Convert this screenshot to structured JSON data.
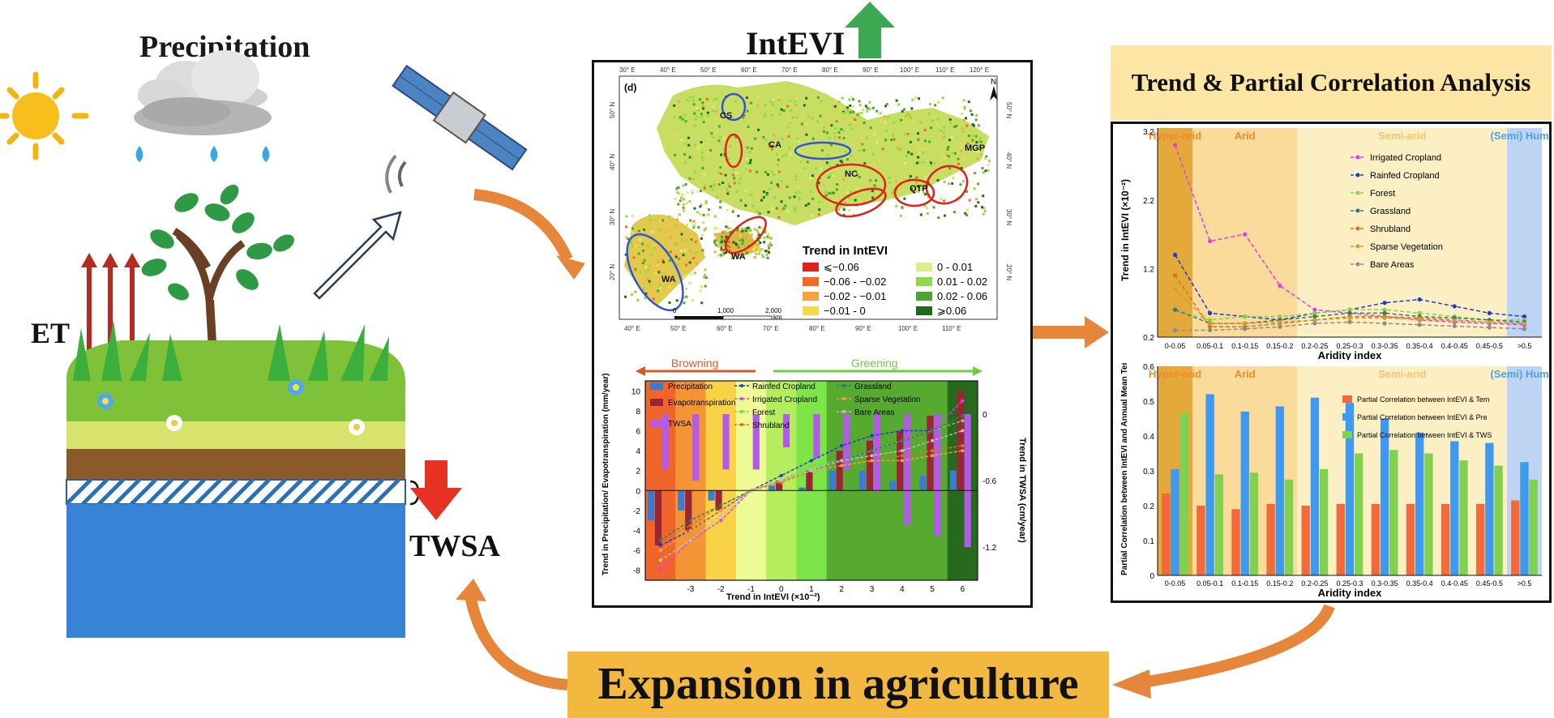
{
  "labels": {
    "precipitation": "Precipitation",
    "intevi": "IntEVI",
    "et": "ET",
    "twsa": "TWSA",
    "trend_title": "Trend & Partial Correlation Analysis",
    "expansion": "Expansion in agriculture"
  },
  "map": {
    "panel_label": "(d)",
    "north": "N",
    "lon_labels": [
      "30° E",
      "40° E",
      "50° E",
      "60° E",
      "70° E",
      "80° E",
      "90° E",
      "100° E",
      "110° E",
      "120° E"
    ],
    "lon_labels_bottom": [
      "40° E",
      "50° E",
      "60° E",
      "70° E",
      "80° E",
      "90° E",
      "100° E",
      "110° E"
    ],
    "lat_labels": [
      "50° N",
      "40° N",
      "30° N",
      "20° N"
    ],
    "regions": [
      "CS",
      "CA",
      "NC",
      "MGP",
      "QTP",
      "WA",
      "WA"
    ],
    "scale": [
      "0",
      "1,000",
      "2,000",
      "km"
    ],
    "legend_title": "Trend in IntEVI",
    "legend": [
      {
        "label": "⩽−0.06",
        "color": "#e0201c"
      },
      {
        "label": "0 - 0.01",
        "color": "#d9f08a"
      },
      {
        "label": "−0.06 - −0.02",
        "color": "#f26a26"
      },
      {
        "label": "0.01 - 0.02",
        "color": "#8fd94a"
      },
      {
        "label": "−0.02 - −0.01",
        "color": "#f6a241"
      },
      {
        "label": "0.02 - 0.06",
        "color": "#4ba52e"
      },
      {
        "label": "−0.01 - 0",
        "color": "#f7d84c"
      },
      {
        "label": "⩾0.06",
        "color": "#1f6b1e"
      }
    ]
  },
  "chart_mid": {
    "browning": "Browning",
    "greening": "Greening",
    "ylabel_left": "Trend in Precipitation/ Evapotranspiration (mm/year)",
    "ylabel_right": "Trend in TWSA (cm/year)",
    "xlabel": "Trend in IntEVI (×10⁻²)",
    "y_ticks": [
      "10",
      "8",
      "6",
      "4",
      "2",
      "0",
      "-2",
      "-4",
      "-6",
      "-8"
    ],
    "y2_ticks": [
      "0",
      "-0.6",
      "-1.2"
    ],
    "x_ticks": [
      "-3",
      "-2",
      "-1",
      "0",
      "1",
      "2",
      "3",
      "4",
      "5",
      "6"
    ],
    "legend": [
      "Precipitation",
      "Evapotranspiration",
      "TWSA",
      "Rainfed Cropland",
      "Irrigated Cropland",
      "Forest",
      "Shrubland",
      "Grassland",
      "Sparse Vegetation",
      "Bare Areas"
    ]
  },
  "chart_top": {
    "zones": [
      "Hyper-arid",
      "Arid",
      "Semi-arid",
      "(Semi) Humid"
    ],
    "ylabel": "Trend in IntEVI (×10⁻²)",
    "xlabel": "Aridity index",
    "y_ticks": [
      "3.2",
      "2.2",
      "1.2",
      "0.2"
    ],
    "x_ticks": [
      "0-0.05",
      "0.05-0.1",
      "0.1-0.15",
      "0.15-0.2",
      "0.2-0.25",
      "0.25-0.3",
      "0.3-0.35",
      "0.35-0.4",
      "0.4-0.45",
      "0.45-0.5",
      ">0.5"
    ],
    "legend": [
      "Irrigated Cropland",
      "Rainfed Cropland",
      "Forest",
      "Grassland",
      "Shrubland",
      "Sparse Vegetation",
      "Bare Areas"
    ]
  },
  "chart_bottom": {
    "zones": [
      "Hyper-arid",
      "Arid",
      "Semi-arid",
      "(Semi) Humid"
    ],
    "ylabel": "Partial Correlation between IntEVI and Annual Mean Temperature/Precipitation/TWSA",
    "xlabel": "Aridity index",
    "y_ticks": [
      "0.6",
      "0.5",
      "0.4",
      "0.3",
      "0.2",
      "0.1",
      "0"
    ],
    "x_ticks": [
      "0-0.05",
      "0.05-0.1",
      "0.1-0.15",
      "0.15-0.2",
      "0.2-0.25",
      "0.25-0.3",
      "0.3-0.35",
      "0.35-0.4",
      "0.4-0.45",
      "0.45-0.5",
      ">0.5"
    ],
    "legend": [
      "Partial Correlation between IntEVI & Tem",
      "Partial Correlation between IntEVI & Pre",
      "Partial Correlation between IntEVI & TWS"
    ]
  },
  "chart_data": [
    {
      "type": "bar",
      "title": "",
      "xlabel": "Trend in IntEVI (×10⁻²)",
      "ylabel": "Trend in Precipitation/ Evapotranspiration (mm/year)",
      "x": [
        -3.5,
        -2.5,
        -1.5,
        -0.5,
        0.5,
        1.5,
        2.5,
        3.5,
        4.5,
        5.5,
        6.5
      ],
      "ylim": [
        -9,
        11
      ],
      "series": [
        {
          "name": "Precipitation",
          "values": [
            -3,
            -2,
            -1,
            0,
            0.5,
            0.3,
            2,
            2,
            1,
            1.5,
            2
          ]
        },
        {
          "name": "Evapotranspiration",
          "values": [
            -5.5,
            -4,
            -2,
            0,
            1,
            2,
            4,
            5,
            6,
            7.5,
            10
          ]
        }
      ],
      "twsa": {
        "name": "TWSA",
        "ylim2": [
          -1.5,
          0.3
        ],
        "values": [
          -0.5,
          -0.6,
          -0.5,
          -0.5,
          -0.3,
          -0.4,
          -0.5,
          -0.7,
          -1.0,
          -1.1,
          -1.2
        ]
      }
    },
    {
      "type": "line",
      "title": "",
      "xlabel": "Aridity index",
      "ylabel": "Trend in IntEVI (×10⁻²)",
      "categories": [
        "0-0.05",
        "0.05-0.1",
        "0.1-0.15",
        "0.15-0.2",
        "0.2-0.25",
        "0.25-0.3",
        "0.3-0.35",
        "0.35-0.4",
        "0.4-0.45",
        "0.45-0.5",
        ">0.5"
      ],
      "ylim": [
        0.2,
        3.2
      ],
      "series": [
        {
          "name": "Irrigated Cropland",
          "values": [
            3.0,
            1.6,
            1.7,
            0.95,
            0.6,
            0.55,
            0.5,
            0.45,
            0.42,
            0.4,
            0.38
          ]
        },
        {
          "name": "Rainfed Cropland",
          "values": [
            1.4,
            0.55,
            0.5,
            0.45,
            0.55,
            0.6,
            0.7,
            0.75,
            0.65,
            0.55,
            0.5
          ]
        },
        {
          "name": "Forest",
          "values": [
            0.6,
            0.45,
            0.5,
            0.5,
            0.55,
            0.6,
            0.6,
            0.55,
            0.5,
            0.45,
            0.45
          ]
        },
        {
          "name": "Grassland",
          "values": [
            0.6,
            0.4,
            0.4,
            0.45,
            0.5,
            0.55,
            0.55,
            0.5,
            0.48,
            0.45,
            0.42
          ]
        },
        {
          "name": "Shrubland",
          "values": [
            1.1,
            0.35,
            0.35,
            0.4,
            0.45,
            0.5,
            0.5,
            0.48,
            0.45,
            0.42,
            0.4
          ]
        },
        {
          "name": "Sparse Vegetation",
          "values": [
            0.9,
            0.4,
            0.4,
            0.42,
            0.45,
            0.48,
            0.48,
            0.46,
            0.44,
            0.42,
            0.4
          ]
        },
        {
          "name": "Bare Areas",
          "values": [
            0.3,
            0.3,
            0.32,
            0.35,
            0.4,
            0.42,
            0.4,
            0.38,
            0.36,
            0.34,
            0.32
          ]
        }
      ]
    },
    {
      "type": "bar",
      "title": "",
      "xlabel": "Aridity index",
      "ylabel": "Partial Correlation between IntEVI and Annual Mean Temperature/Precipitation/TWSA",
      "categories": [
        "0-0.05",
        "0.05-0.1",
        "0.1-0.15",
        "0.15-0.2",
        "0.2-0.25",
        "0.25-0.3",
        "0.3-0.35",
        "0.35-0.4",
        "0.4-0.45",
        "0.45-0.5",
        ">0.5"
      ],
      "ylim": [
        0,
        0.6
      ],
      "series": [
        {
          "name": "Partial Correlation between IntEVI & Tem",
          "values": [
            0.235,
            0.2,
            0.19,
            0.205,
            0.2,
            0.205,
            0.205,
            0.205,
            0.205,
            0.205,
            0.215
          ]
        },
        {
          "name": "Partial Correlation between IntEVI & Pre",
          "values": [
            0.305,
            0.52,
            0.47,
            0.485,
            0.51,
            0.495,
            0.45,
            0.41,
            0.385,
            0.38,
            0.325
          ]
        },
        {
          "name": "Partial Correlation between IntEVI & TWS",
          "values": [
            0.465,
            0.29,
            0.295,
            0.275,
            0.305,
            0.35,
            0.36,
            0.35,
            0.33,
            0.315,
            0.275
          ]
        }
      ]
    }
  ],
  "colors": {
    "orange_arrow": "#e5863a",
    "green_arrow": "#3da852",
    "red_arrow": "#e63222",
    "twsa_blue": "#3a85d8",
    "expansion_box": "#f3b83f",
    "trend_box": "#fde5a5"
  }
}
